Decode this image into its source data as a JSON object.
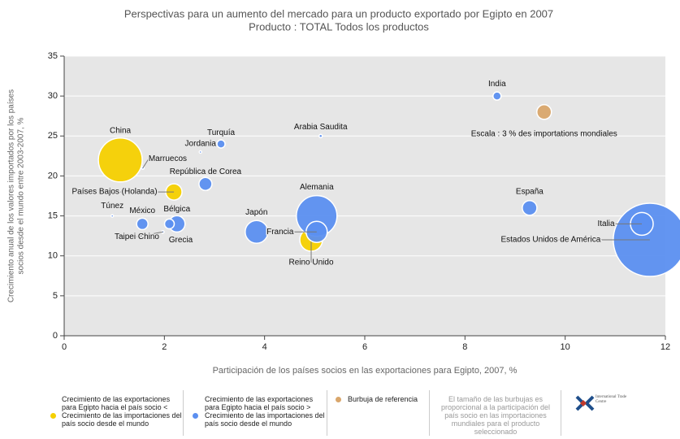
{
  "chart_data": {
    "type": "bubble",
    "title": "Perspectivas para un aumento del mercado para un producto exportado por Egipto en 2007",
    "subtitle": "Producto : TOTAL Todos los productos",
    "x_label": "Participación de los países socios en las exportaciones para Egipto, 2007, %",
    "y_label": [
      "Crecimiento anual de los valores importados por los países",
      "socios desde el mundo entre 2003-2007, %"
    ],
    "xlim": [
      0,
      12
    ],
    "xticks": [
      0,
      2,
      4,
      6,
      8,
      10,
      12
    ],
    "ylim": [
      0,
      35
    ],
    "yticks": [
      0,
      5,
      10,
      15,
      20,
      25,
      30,
      35
    ],
    "grid": true,
    "series": [
      {
        "name": "Crecimiento de las exportaciones para Egipto hacia el país socio < Crecimiento de las importaciones del país socio desde el mundo",
        "color": "#f5d000",
        "labels": [
          "China",
          "Países Bajos (Holanda)",
          "Reino Unido"
        ],
        "x": [
          1.12,
          2.19,
          4.93
        ],
        "values": [
          22,
          18,
          12
        ],
        "sizes": [
          27,
          10,
          14
        ]
      },
      {
        "name": "Crecimiento de las exportaciones para Egipto hacia el país socio > Crecimiento de las importaciones del país socio desde el mundo",
        "color": "#5b8ff0",
        "labels": [
          "India",
          "Arabia Saudita",
          "Turquía",
          "Jordania",
          "Marruecos",
          "República de Corea",
          "Túnez",
          "México",
          "Bélgica",
          "Taipei Chino",
          "Grecia",
          "Japón",
          "Alemania",
          "Francia",
          "España",
          "Italia",
          "Estados Unidos de América"
        ],
        "x": [
          8.64,
          5.12,
          3.13,
          2.72,
          1.57,
          2.82,
          0.96,
          1.56,
          2.25,
          1.97,
          2.1,
          3.84,
          5.04,
          5.04,
          9.29,
          11.53,
          11.69
        ],
        "values": [
          30,
          25,
          24,
          23,
          21,
          19,
          15,
          14,
          14,
          13,
          14,
          13,
          15,
          13,
          16,
          14,
          12
        ],
        "sizes": [
          5,
          2,
          5,
          1.5,
          1.5,
          8,
          1.5,
          7,
          10,
          1.5,
          6,
          14,
          25,
          13,
          9,
          14,
          45
        ]
      },
      {
        "name": "Burbuja de referencia",
        "color": "#d9a66b",
        "labels": [
          "Escala : 3 % des importations mondiales"
        ],
        "x": [
          9.58
        ],
        "values": [
          28
        ],
        "sizes": [
          9
        ]
      }
    ],
    "note": "El tamaño de las burbujas es proporcional a la participación del país socio en las importaciones mundiales para el producto seleccionado",
    "logo": "International Trade Centre"
  }
}
